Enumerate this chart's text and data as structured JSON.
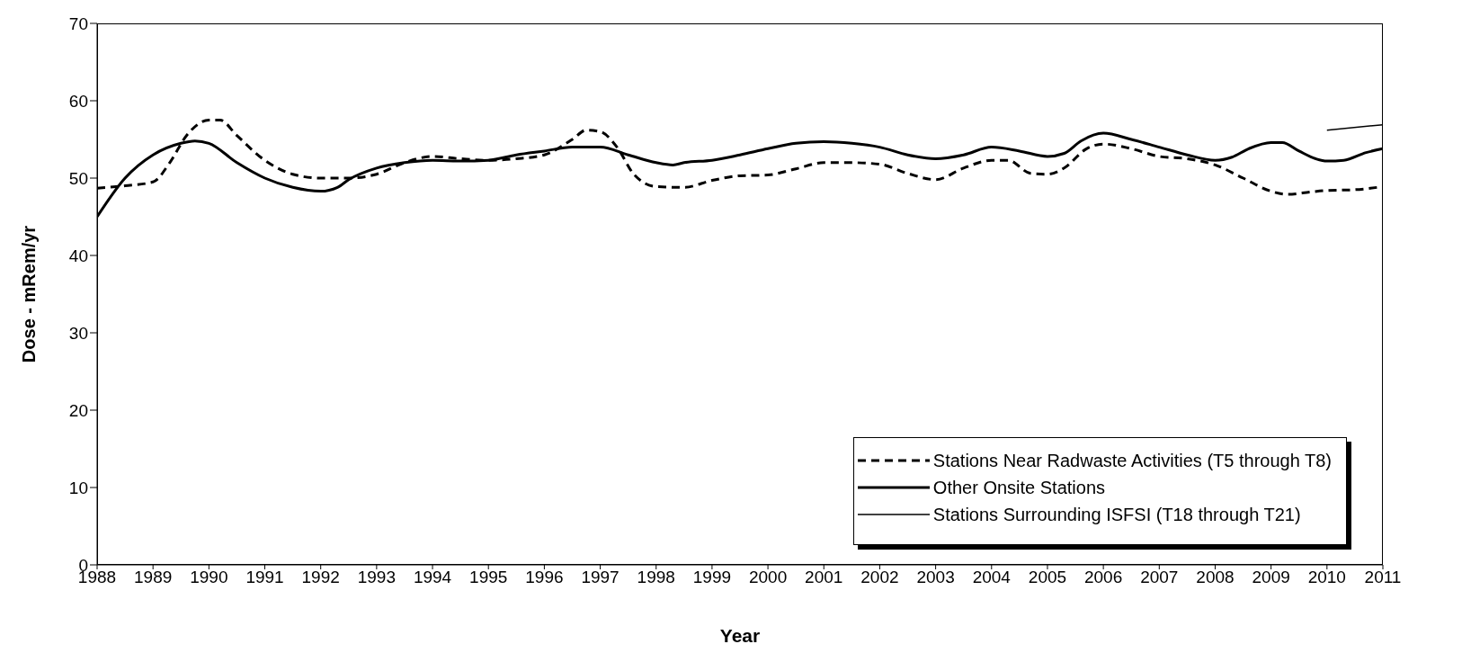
{
  "chart_data": {
    "type": "line",
    "xlabel": "Year",
    "ylabel": "Dose - mRem/yr",
    "xlim": [
      1988,
      2011
    ],
    "xticks": [
      1988,
      1989,
      1990,
      1991,
      1992,
      1993,
      1994,
      1995,
      1996,
      1997,
      1998,
      1999,
      2000,
      2001,
      2002,
      2003,
      2004,
      2005,
      2006,
      2007,
      2008,
      2009,
      2010,
      2011
    ],
    "ylim": [
      0,
      70
    ],
    "yticks": [
      0,
      10,
      20,
      30,
      40,
      50,
      60,
      70
    ],
    "grid": false,
    "legend": "bottom right",
    "marker": "none",
    "series": [
      {
        "name": "Stations Near Radwaste Activities (T5 through T8)",
        "color": "#000000",
        "line_style": "dashed",
        "x": [
          1988,
          1988.5,
          1989,
          1989.3,
          1989.6,
          1990,
          1990.2,
          1990.5,
          1991,
          1991.5,
          1992,
          1992.5,
          1993,
          1993.5,
          1994,
          1994.5,
          1995,
          1995.5,
          1996,
          1996.5,
          1996.75,
          1997,
          1997.3,
          1997.6,
          1998,
          1998.5,
          1999,
          1999.5,
          2000,
          2000.5,
          2001,
          2001.5,
          2002,
          2002.5,
          2003,
          2003.5,
          2004,
          2004.3,
          2004.7,
          2005,
          2005.3,
          2005.7,
          2006,
          2006.5,
          2007,
          2007.5,
          2008,
          2008.5,
          2009,
          2009.3,
          2009.7,
          2010,
          2010.5,
          2010.9
        ],
        "values": [
          48.7,
          49,
          49.5,
          52,
          55.5,
          57.5,
          57.5,
          55.5,
          52.3,
          50.5,
          50,
          50,
          50.5,
          52,
          52.8,
          52.5,
          52.3,
          52.5,
          53,
          55,
          56.2,
          56,
          54,
          50.5,
          48.9,
          48.8,
          49.7,
          50.3,
          50.4,
          51.2,
          52,
          52,
          51.8,
          50.6,
          49.8,
          51.3,
          52.3,
          52.3,
          50.6,
          50.5,
          51.3,
          53.8,
          54.4,
          53.8,
          52.8,
          52.5,
          51.7,
          50,
          48.3,
          47.9,
          48.2,
          48.4,
          48.5,
          48.8
        ]
      },
      {
        "name": "Other Onsite Stations",
        "color": "#000000",
        "line_style": "solid",
        "x": [
          1988,
          1988.5,
          1989,
          1989.5,
          1989.75,
          1990,
          1990.5,
          1991,
          1991.5,
          1992,
          1992.3,
          1992.5,
          1993,
          1993.5,
          1994,
          1994.5,
          1995,
          1995.5,
          1996,
          1996.5,
          1997,
          1997.5,
          1998,
          1998.3,
          1998.5,
          1999,
          1999.5,
          2000,
          2000.5,
          2001,
          2001.5,
          2002,
          2002.5,
          2003,
          2003.5,
          2004,
          2004.5,
          2005,
          2005.3,
          2005.6,
          2006,
          2006.5,
          2007,
          2007.5,
          2008,
          2008.3,
          2008.6,
          2009,
          2009.2,
          2009.5,
          2009.8,
          2010,
          2010.3,
          2010.7,
          2011
        ],
        "values": [
          45,
          50,
          53,
          54.5,
          54.8,
          54.5,
          52,
          50,
          48.8,
          48.3,
          48.8,
          49.8,
          51.3,
          52,
          52.3,
          52.2,
          52.3,
          53,
          53.5,
          54,
          54,
          53,
          52,
          51.7,
          52,
          52.3,
          53,
          53.8,
          54.5,
          54.7,
          54.5,
          54,
          53,
          52.5,
          53,
          54,
          53.5,
          52.8,
          53.2,
          54.8,
          55.8,
          55,
          54,
          53,
          52.3,
          52.7,
          53.8,
          54.6,
          54.6,
          53.5,
          52.5,
          52.2,
          52.3,
          53.3,
          53.8
        ]
      },
      {
        "name": "Stations Surrounding ISFSI (T18 through T21)",
        "color": "#000000",
        "line_style": "solid",
        "x": [
          2010,
          2011
        ],
        "values": [
          56.2,
          56.9
        ]
      }
    ]
  }
}
